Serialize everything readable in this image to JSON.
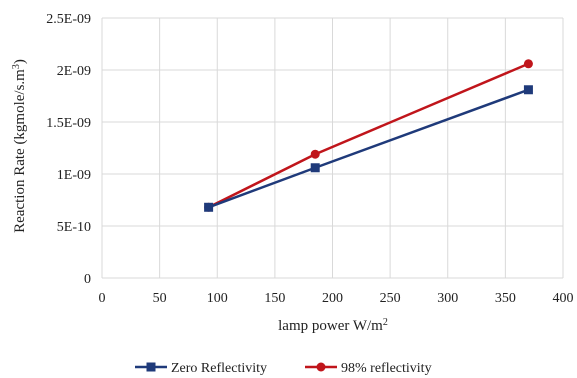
{
  "chart_data": {
    "type": "line",
    "title": "",
    "xlabel": "lamp power W/m",
    "xlabel_sup": "2",
    "ylabel": "Reaction Rate (kgmole/s.m",
    "ylabel_sup": "3",
    "ylabel_suffix": ")",
    "xlim": [
      0,
      400
    ],
    "ylim": [
      0,
      2.5e-09
    ],
    "x_ticks": [
      "0",
      "50",
      "100",
      "150",
      "200",
      "250",
      "300",
      "350",
      "400"
    ],
    "y_ticks": [
      "0",
      "5E-10",
      "1E-09",
      "1.5E-09",
      "2E-09",
      "2.5E-09"
    ],
    "grid": true,
    "legend_position": "bottom",
    "series": [
      {
        "name": "Zero Reflectivity",
        "color": "#1f3a7a",
        "marker": "square",
        "x": [
          92.5,
          185,
          370
        ],
        "y": [
          6.8e-10,
          1.06e-09,
          1.81e-09
        ]
      },
      {
        "name": "98% reflectivity",
        "color": "#c0151b",
        "marker": "circle",
        "x": [
          92.5,
          185,
          370
        ],
        "y": [
          6.8e-10,
          1.19e-09,
          2.06e-09
        ]
      }
    ]
  }
}
